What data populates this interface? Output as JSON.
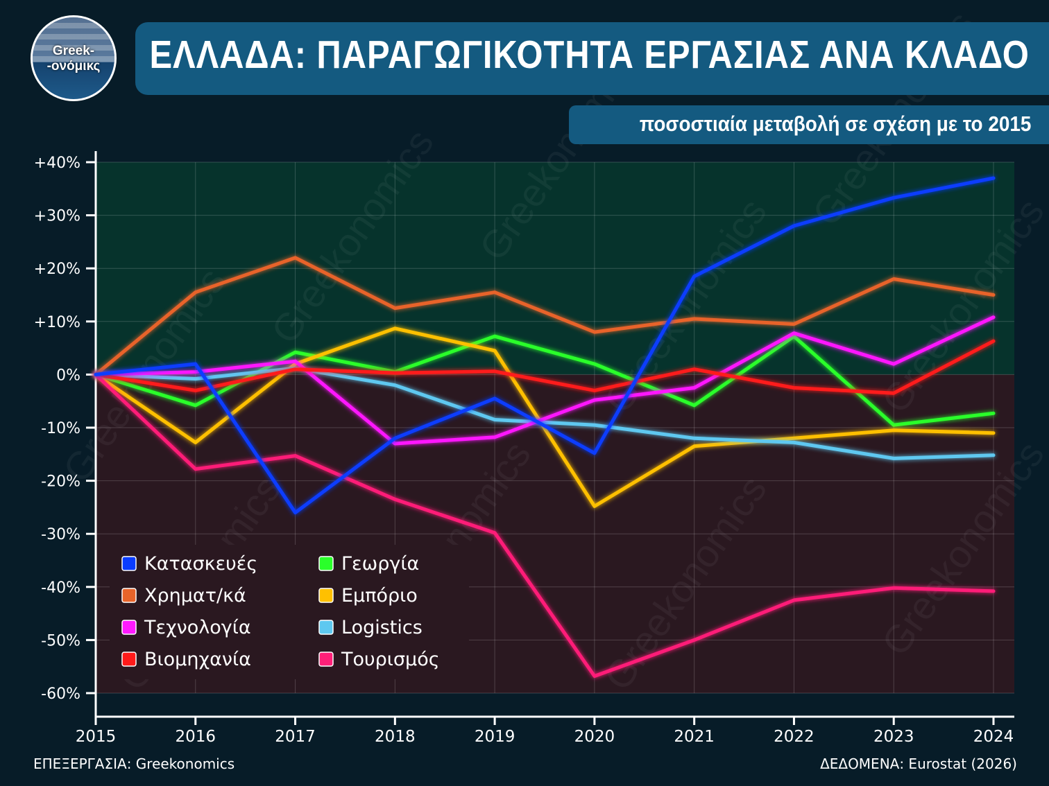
{
  "logo": {
    "line1": "Greek-",
    "line2": "-ονόμικς"
  },
  "title": "ΕΛΛΑΔΑ: ΠΑΡΑΓΩΓΙΚΟΤΗΤΑ ΕΡΓΑΣΙΑΣ ΑΝΑ ΚΛΑΔΟ",
  "subtitle": "ποσοστιαία μεταβολή σε σχέση με το 2015",
  "footer": {
    "left": "ΕΠΕΞΕΡΓΑΣΙΑ: Greekonomics",
    "right": "ΔΕΔΟΜΕΝΑ: Eurostat (2026)"
  },
  "watermark": "Greekonomics",
  "colors": {
    "background": "#071c28",
    "positive_zone": "#06332c",
    "negative_zone": "#2a1820",
    "title_bar": "#145a80"
  },
  "chart_data": {
    "type": "line",
    "x": [
      2015,
      2016,
      2017,
      2018,
      2019,
      2020,
      2021,
      2022,
      2023,
      2024
    ],
    "xticks": [
      "2015",
      "2016",
      "2017",
      "2018",
      "2019",
      "2020",
      "2021",
      "2022",
      "2023",
      "2024"
    ],
    "ylim": [
      -60,
      40
    ],
    "yticks": [
      {
        "value": 40,
        "label": "+40%"
      },
      {
        "value": 30,
        "label": "+30%"
      },
      {
        "value": 20,
        "label": "+20%"
      },
      {
        "value": 10,
        "label": "+10%"
      },
      {
        "value": 0,
        "label": "0%"
      },
      {
        "value": -10,
        "label": "-10%"
      },
      {
        "value": -20,
        "label": "-20%"
      },
      {
        "value": -30,
        "label": "-30%"
      },
      {
        "value": -40,
        "label": "-40%"
      },
      {
        "value": -50,
        "label": "-50%"
      },
      {
        "value": -60,
        "label": "-60%"
      }
    ],
    "grid": true,
    "legend_position": "bottom-left",
    "series": [
      {
        "name": "Κατασκευές",
        "color": "#0a3cff",
        "values": [
          0,
          2,
          -26,
          -12,
          -4.5,
          -14.8,
          18.5,
          28,
          33.3,
          37
        ]
      },
      {
        "name": "Χρηματ/κά",
        "color": "#e8642a",
        "values": [
          0,
          15.5,
          22,
          12.5,
          15.5,
          8,
          10.5,
          9.5,
          18,
          15
        ]
      },
      {
        "name": "Τεχνολογία",
        "color": "#ff19ff",
        "values": [
          0,
          0.5,
          2.5,
          -13,
          -11.8,
          -4.8,
          -2.5,
          7.8,
          2,
          10.8
        ]
      },
      {
        "name": "Βιομηχανία",
        "color": "#ff1a1a",
        "values": [
          0,
          -3,
          1,
          0.3,
          0.6,
          -3,
          1,
          -2.5,
          -3.5,
          6.3
        ]
      },
      {
        "name": "Γεωργία",
        "color": "#2aff2a",
        "values": [
          0,
          -5.8,
          4.2,
          0.5,
          7.2,
          2,
          -5.8,
          7.2,
          -9.5,
          -7.3
        ]
      },
      {
        "name": "Εμπόριο",
        "color": "#ffc000",
        "values": [
          0,
          -12.8,
          2,
          8.7,
          4.5,
          -24.8,
          -13.5,
          -12,
          -10.5,
          -11
        ]
      },
      {
        "name": "Logistics",
        "color": "#5ec8f0",
        "values": [
          0,
          -0.8,
          1.2,
          -2,
          -8.5,
          -9.5,
          -12,
          -12.8,
          -15.8,
          -15.2
        ]
      },
      {
        "name": "Τουρισμός",
        "color": "#ff1f78",
        "values": [
          0,
          -17.8,
          -15.3,
          -23.5,
          -29.8,
          -56.8,
          -50,
          -42.5,
          -40.2,
          -40.8
        ]
      }
    ]
  }
}
